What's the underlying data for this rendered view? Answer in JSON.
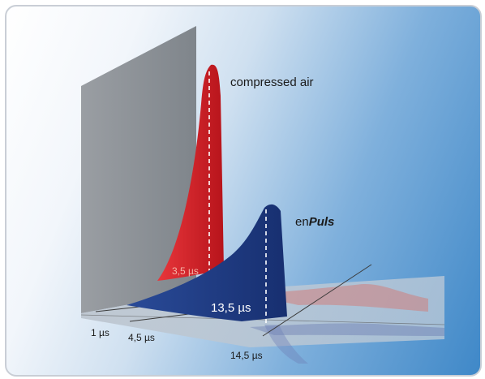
{
  "labels": {
    "compressed_air": "compressed air",
    "enpuls_prefix": "en",
    "enpuls_brand": "Puls",
    "peak_red": "3,5 µs",
    "peak_blue": "13,5 µs"
  },
  "axis_ticks": [
    "1 µs",
    "4,5 µs",
    "14,5 µs"
  ],
  "colors": {
    "red_pulse": "#d11f26",
    "blue_pulse": "#1f3d86",
    "wall": "#8e9398"
  }
}
